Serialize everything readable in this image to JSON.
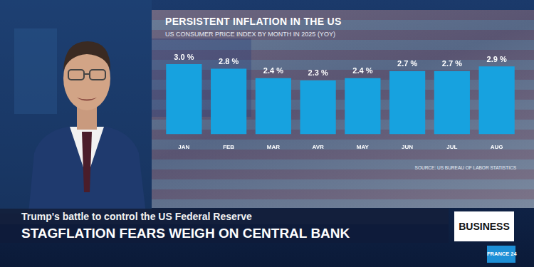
{
  "chart_data": {
    "type": "bar",
    "title": "PERSISTENT INFLATION IN THE US",
    "subtitle": "US CONSUMER PRICE INDEX BY MONTH IN 2025 (YOY)",
    "categories": [
      "JAN",
      "FEB",
      "MAR",
      "AVR",
      "MAY",
      "JUN",
      "JUL",
      "AUG"
    ],
    "values": [
      3.0,
      2.8,
      2.4,
      2.3,
      2.4,
      2.7,
      2.7,
      2.9
    ],
    "value_labels": [
      "3.0 %",
      "2.8 %",
      "2.4 %",
      "2.3 %",
      "2.4 %",
      "2.7 %",
      "2.7 %",
      "2.9 %"
    ],
    "color": "#17a2df",
    "ylim": [
      0,
      3
    ],
    "yticks": [
      0,
      3
    ],
    "grid": false,
    "data_labels": true,
    "tick_labels": "x",
    "source": "SOURCE: US BUREAU OF LABOR STATISTICS"
  },
  "banner": {
    "kicker": "Trump's battle to control the US Federal Reserve",
    "headline": "STAGFLATION FEARS WEIGH ON CENTRAL BANK",
    "section": "BUSINESS",
    "channel": "FRANCE 24"
  }
}
